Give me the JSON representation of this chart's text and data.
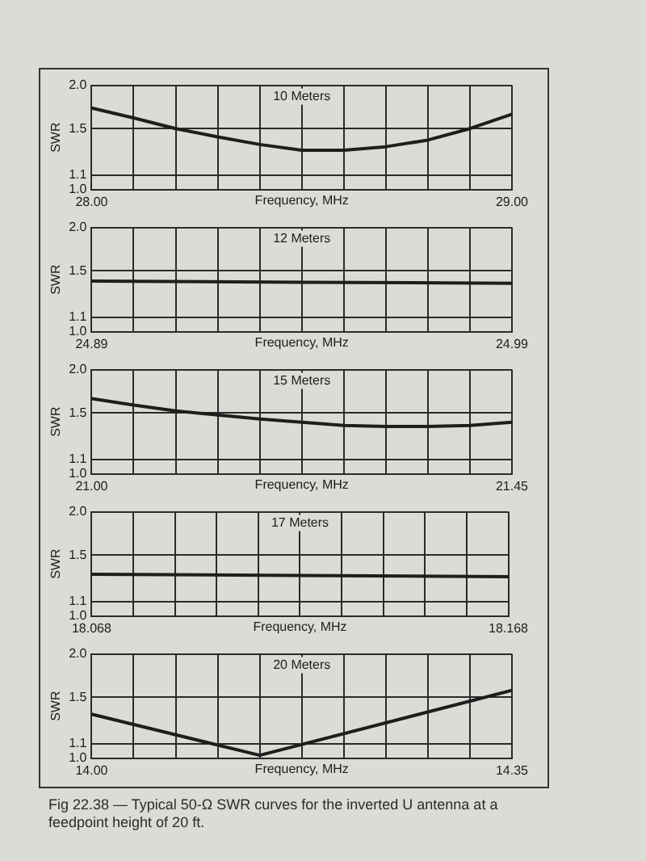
{
  "chart_data": [
    {
      "type": "line",
      "title": "10 Meters",
      "xlabel": "Frequency, MHz",
      "ylabel": "SWR",
      "x": [
        28.0,
        28.1,
        28.2,
        28.3,
        28.4,
        28.5,
        28.6,
        28.7,
        28.8,
        28.9,
        29.0
      ],
      "series": [
        {
          "color": "#1e1e1e",
          "values": [
            1.72,
            1.61,
            1.5,
            1.42,
            1.35,
            1.3,
            1.3,
            1.33,
            1.39,
            1.5,
            1.65
          ]
        }
      ],
      "xlim": [
        28.0,
        29.0
      ],
      "xticks": [
        {
          "value": 28.0,
          "label": "28.00"
        },
        {
          "value": 28.1,
          "label": null
        },
        {
          "value": 28.2,
          "label": null
        },
        {
          "value": 28.3,
          "label": null
        },
        {
          "value": 28.4,
          "label": null
        },
        {
          "value": 28.5,
          "label": null
        },
        {
          "value": 28.6,
          "label": null
        },
        {
          "value": 28.7,
          "label": null
        },
        {
          "value": 28.8,
          "label": null
        },
        {
          "value": 28.9,
          "label": null
        },
        {
          "value": 29.0,
          "label": "29.00"
        }
      ],
      "ylim": [
        1.0,
        2.0
      ],
      "yticks": [
        {
          "value": 1.0,
          "label": "1.0"
        },
        {
          "value": 1.1,
          "label": "1.1"
        },
        {
          "value": 1.5,
          "label": "1.5"
        },
        {
          "value": 2.0,
          "label": "2.0"
        }
      ],
      "log": true,
      "grid": true,
      "marker": "none"
    },
    {
      "type": "line",
      "title": "12 Meters",
      "xlabel": "Frequency, MHz",
      "ylabel": "SWR",
      "x": [
        24.89,
        24.94,
        24.99
      ],
      "series": [
        {
          "color": "#1e1e1e",
          "values": [
            1.4,
            1.39,
            1.38
          ]
        }
      ],
      "xlim": [
        24.89,
        24.99
      ],
      "xticks": [
        {
          "value": 24.89,
          "label": "24.89"
        },
        {
          "value": 24.9,
          "label": null
        },
        {
          "value": 24.91,
          "label": null
        },
        {
          "value": 24.92,
          "label": null
        },
        {
          "value": 24.93,
          "label": null
        },
        {
          "value": 24.94,
          "label": null
        },
        {
          "value": 24.95,
          "label": null
        },
        {
          "value": 24.96,
          "label": null
        },
        {
          "value": 24.97,
          "label": null
        },
        {
          "value": 24.98,
          "label": null
        },
        {
          "value": 24.99,
          "label": "24.99"
        }
      ],
      "ylim": [
        1.0,
        2.0
      ],
      "yticks": [
        {
          "value": 1.0,
          "label": "1.0"
        },
        {
          "value": 1.1,
          "label": "1.1"
        },
        {
          "value": 1.5,
          "label": "1.5"
        },
        {
          "value": 2.0,
          "label": "2.0"
        }
      ],
      "log": true,
      "grid": true,
      "marker": "none"
    },
    {
      "type": "line",
      "title": "15 Meters",
      "xlabel": "Frequency, MHz",
      "ylabel": "SWR",
      "x": [
        21.0,
        21.045,
        21.09,
        21.135,
        21.18,
        21.225,
        21.27,
        21.315,
        21.36,
        21.405,
        21.45
      ],
      "series": [
        {
          "color": "#1e1e1e",
          "values": [
            1.65,
            1.58,
            1.52,
            1.48,
            1.44,
            1.41,
            1.38,
            1.37,
            1.37,
            1.38,
            1.41
          ]
        }
      ],
      "xlim": [
        21.0,
        21.45
      ],
      "xticks": [
        {
          "value": 21.0,
          "label": "21.00"
        },
        {
          "value": 21.045,
          "label": null
        },
        {
          "value": 21.09,
          "label": null
        },
        {
          "value": 21.135,
          "label": null
        },
        {
          "value": 21.18,
          "label": null
        },
        {
          "value": 21.225,
          "label": null
        },
        {
          "value": 21.27,
          "label": null
        },
        {
          "value": 21.315,
          "label": null
        },
        {
          "value": 21.36,
          "label": null
        },
        {
          "value": 21.405,
          "label": null
        },
        {
          "value": 21.45,
          "label": "21.45"
        }
      ],
      "ylim": [
        1.0,
        2.0
      ],
      "yticks": [
        {
          "value": 1.0,
          "label": "1.0"
        },
        {
          "value": 1.1,
          "label": "1.1"
        },
        {
          "value": 1.5,
          "label": "1.5"
        },
        {
          "value": 2.0,
          "label": "2.0"
        }
      ],
      "log": true,
      "grid": true,
      "marker": "none"
    },
    {
      "type": "line",
      "title": "17 Meters",
      "xlabel": "Frequency, MHz",
      "ylabel": "SWR",
      "x": [
        18.068,
        18.118,
        18.168
      ],
      "series": [
        {
          "color": "#1e1e1e",
          "values": [
            1.32,
            1.31,
            1.3
          ]
        }
      ],
      "xlim": [
        18.068,
        18.168
      ],
      "xticks": [
        {
          "value": 18.068,
          "label": "18.068"
        },
        {
          "value": 18.078,
          "label": null
        },
        {
          "value": 18.088,
          "label": null
        },
        {
          "value": 18.098,
          "label": null
        },
        {
          "value": 18.108,
          "label": null
        },
        {
          "value": 18.118,
          "label": null
        },
        {
          "value": 18.128,
          "label": null
        },
        {
          "value": 18.138,
          "label": null
        },
        {
          "value": 18.148,
          "label": null
        },
        {
          "value": 18.158,
          "label": null
        },
        {
          "value": 18.168,
          "label": "18.168"
        }
      ],
      "ylim": [
        1.0,
        2.0
      ],
      "yticks": [
        {
          "value": 1.0,
          "label": "1.0"
        },
        {
          "value": 1.1,
          "label": "1.1"
        },
        {
          "value": 1.5,
          "label": "1.5"
        },
        {
          "value": 2.0,
          "label": "2.0"
        }
      ],
      "log": true,
      "grid": true,
      "marker": "none"
    },
    {
      "type": "line",
      "title": "20 Meters",
      "xlabel": "Frequency, MHz",
      "ylabel": "SWR",
      "x": [
        14.0,
        14.14,
        14.35
      ],
      "series": [
        {
          "color": "#1e1e1e",
          "values": [
            1.34,
            1.02,
            1.57
          ]
        }
      ],
      "xlim": [
        14.0,
        14.35
      ],
      "xticks": [
        {
          "value": 14.0,
          "label": "14.00"
        },
        {
          "value": 14.035,
          "label": null
        },
        {
          "value": 14.07,
          "label": null
        },
        {
          "value": 14.105,
          "label": null
        },
        {
          "value": 14.14,
          "label": null
        },
        {
          "value": 14.175,
          "label": null
        },
        {
          "value": 14.21,
          "label": null
        },
        {
          "value": 14.245,
          "label": null
        },
        {
          "value": 14.28,
          "label": null
        },
        {
          "value": 14.315,
          "label": null
        },
        {
          "value": 14.35,
          "label": "14.35"
        }
      ],
      "ylim": [
        1.0,
        2.0
      ],
      "yticks": [
        {
          "value": 1.0,
          "label": "1.0"
        },
        {
          "value": 1.1,
          "label": "1.1"
        },
        {
          "value": 1.5,
          "label": "1.5"
        },
        {
          "value": 2.0,
          "label": "2.0"
        }
      ],
      "log": true,
      "grid": true,
      "marker": "none",
      "annotations": [
        "Fig 22.38 — Typical 50-Ω SWR curves for the inverted U antenna at a feedpoint height of 20 ft."
      ]
    }
  ]
}
